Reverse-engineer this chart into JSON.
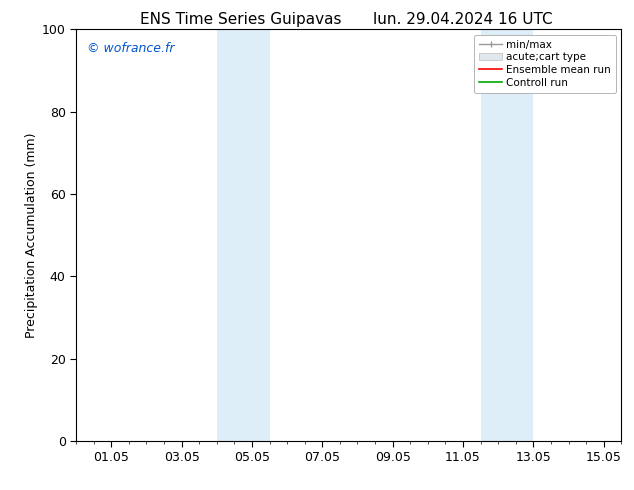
{
  "title_left": "ENS Time Series Guipavas",
  "title_right": "lun. 29.04.2024 16 UTC",
  "ylabel": "Precipitation Accumulation (mm)",
  "watermark": "© wofrance.fr",
  "watermark_color": "#0055cc",
  "ylim": [
    0,
    100
  ],
  "yticks": [
    0,
    20,
    40,
    60,
    80,
    100
  ],
  "xlim": [
    0.0,
    15.5
  ],
  "xtick_labels": [
    "01.05",
    "03.05",
    "05.05",
    "07.05",
    "09.05",
    "11.05",
    "13.05",
    "15.05"
  ],
  "xtick_positions": [
    1.0,
    3.0,
    5.0,
    7.0,
    9.0,
    11.0,
    13.0,
    15.0
  ],
  "shaded_regions": [
    {
      "xmin": 4.0,
      "xmax": 5.5,
      "color": "#ddeef8"
    },
    {
      "xmin": 11.5,
      "xmax": 13.0,
      "color": "#ddeef8"
    }
  ],
  "legend_labels": [
    "min/max",
    "acute;cart type",
    "Ensemble mean run",
    "Controll run"
  ],
  "legend_colors": [
    "#999999",
    "#cccccc",
    "#ff0000",
    "#00aa00"
  ],
  "background_color": "#ffffff",
  "font_size": 9,
  "title_font_size": 11,
  "ylabel_font_size": 9
}
